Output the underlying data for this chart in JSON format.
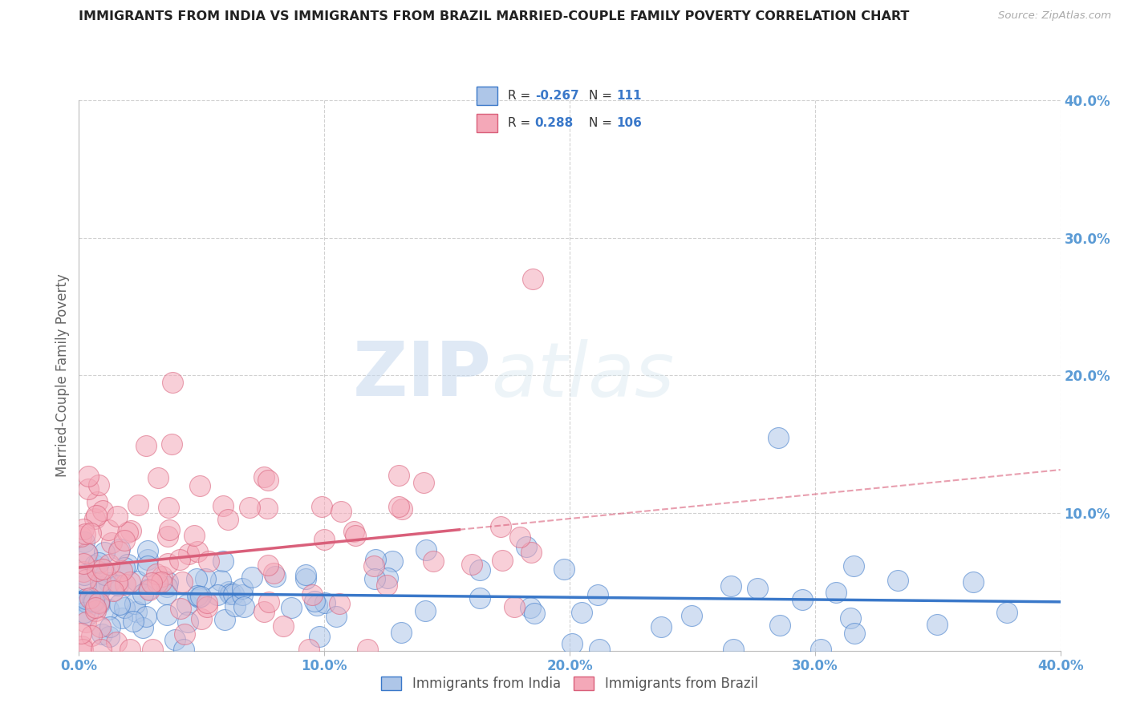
{
  "title": "IMMIGRANTS FROM INDIA VS IMMIGRANTS FROM BRAZIL MARRIED-COUPLE FAMILY POVERTY CORRELATION CHART",
  "source": "Source: ZipAtlas.com",
  "ylabel": "Married-Couple Family Poverty",
  "xlim": [
    0.0,
    0.4
  ],
  "ylim": [
    0.0,
    0.4
  ],
  "xtick_labels": [
    "0.0%",
    "10.0%",
    "20.0%",
    "30.0%",
    "40.0%"
  ],
  "xtick_vals": [
    0.0,
    0.1,
    0.2,
    0.3,
    0.4
  ],
  "ytick_labels": [
    "10.0%",
    "20.0%",
    "30.0%",
    "40.0%"
  ],
  "ytick_vals": [
    0.1,
    0.2,
    0.3,
    0.4
  ],
  "india_R": -0.267,
  "india_N": 111,
  "brazil_R": 0.288,
  "brazil_N": 106,
  "india_color": "#aec6e8",
  "brazil_color": "#f4a8b8",
  "india_line_color": "#3a78c9",
  "brazil_line_color": "#d95f7a",
  "watermark_zip": "ZIP",
  "watermark_atlas": "atlas",
  "legend_label_india": "Immigrants from India",
  "legend_label_brazil": "Immigrants from Brazil",
  "background_color": "#ffffff",
  "grid_color": "#cccccc",
  "title_color": "#222222",
  "axis_label_color": "#5b9bd5"
}
